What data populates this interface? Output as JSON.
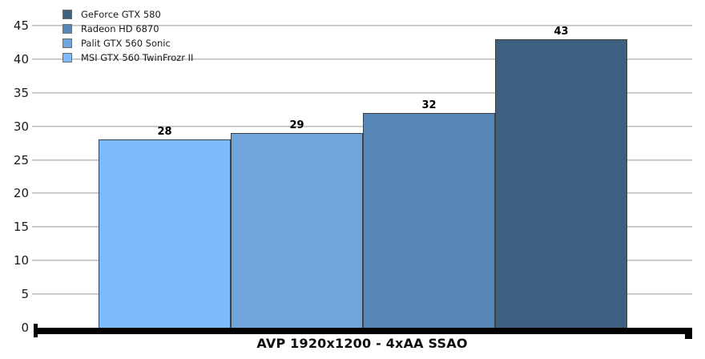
{
  "chart_data": {
    "type": "bar",
    "title": "AVP 1920x1200 - 4xAA SSAO",
    "xlabel": "AVP 1920x1200 - 4xAA SSAO",
    "ylabel": "",
    "categories": [
      "MSI GTX 560 TwinFrozr II",
      "Palit GTX 560 Sonic",
      "Radeon HD 6870",
      "GeForce GTX 580"
    ],
    "values": [
      28,
      29,
      32,
      43
    ],
    "bar_colors": [
      "#7EBAFA",
      "#6FA4DD",
      "#5787B6",
      "#3E6080"
    ],
    "value_labels": [
      "28",
      "29",
      "32",
      "43"
    ],
    "ylim": [
      0,
      45
    ],
    "yticks": [
      0,
      5,
      10,
      15,
      20,
      25,
      30,
      35,
      40,
      45
    ],
    "grid": true,
    "gridline_color": "#C0C0C0",
    "axis_color": "#000000",
    "legend_position": "top-left",
    "legend": [
      {
        "label": "GeForce GTX 580",
        "color": "#3E6080"
      },
      {
        "label": "Radeon HD 6870",
        "color": "#5787B6"
      },
      {
        "label": "Palit GTX 560 Sonic",
        "color": "#6FA4DD"
      },
      {
        "label": "MSI GTX 560 TwinFrozr II",
        "color": "#7EBAFA"
      }
    ]
  }
}
